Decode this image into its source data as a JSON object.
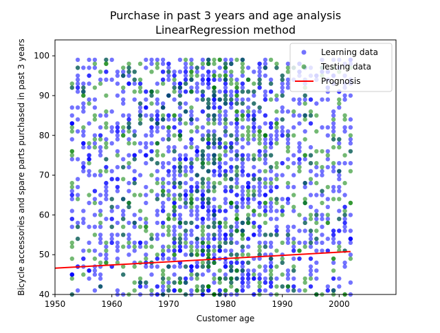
{
  "chart_data": {
    "type": "scatter",
    "title": "Purchase in past 3 years and age analysis",
    "subtitle": "LinearRegression method",
    "xlabel": "Customer age",
    "ylabel": "Bicycle accessories and spare parts purchased in past 3 years",
    "xlim": [
      1950,
      2010
    ],
    "ylim": [
      40,
      104
    ],
    "x_ticks": [
      "1950",
      "1960",
      "1970",
      "1980",
      "1990",
      "2000"
    ],
    "y_ticks": [
      "40",
      "50",
      "60",
      "70",
      "80",
      "90",
      "100"
    ],
    "legend_position": "top-right",
    "grid": false,
    "series": [
      {
        "name": "Learning data",
        "kind": "points",
        "color": "#0000ff",
        "opacity": 0.55,
        "x_range": [
          1953,
          2002
        ],
        "y_range": [
          40,
          99
        ],
        "approx_count": 1500
      },
      {
        "name": "Testing data",
        "kind": "points",
        "color": "#008000",
        "opacity": 0.55,
        "x_range": [
          1953,
          2002
        ],
        "y_range": [
          40,
          99
        ],
        "approx_count": 700
      },
      {
        "name": "Prognosis",
        "kind": "line",
        "color": "#ff0000",
        "x": [
          1950,
          2002
        ],
        "y": [
          46.6,
          50.8
        ]
      }
    ]
  }
}
